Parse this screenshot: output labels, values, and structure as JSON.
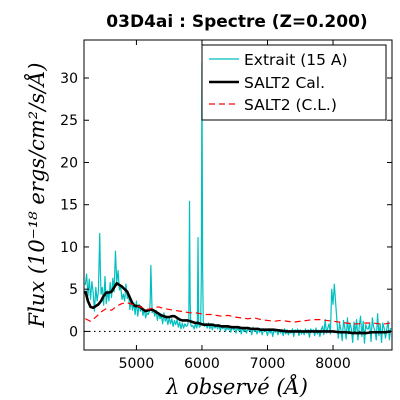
{
  "chart_data": {
    "type": "line",
    "title": "03D4ai : Spectre (Z=0.200)",
    "xlabel": "λ observé (Å)",
    "ylabel": "Flux (10⁻¹⁸ ergs/cm²/s/Å)",
    "xlim": [
      4200,
      8900
    ],
    "ylim": [
      -2.2,
      34.5
    ],
    "xticks": [
      5000,
      6000,
      7000,
      8000
    ],
    "yticks": [
      0,
      5,
      10,
      15,
      20,
      25,
      30
    ],
    "grid": false,
    "legend_position": "top-right",
    "zero_line": {
      "y": 0,
      "style": "dotted",
      "color": "#000000"
    },
    "series": [
      {
        "name": "Extrait (15 A)",
        "color": "#00bfbf",
        "style": "solid",
        "x": [
          4220,
          4240,
          4260,
          4280,
          4300,
          4320,
          4340,
          4360,
          4380,
          4400,
          4420,
          4440,
          4450,
          4460,
          4480,
          4500,
          4520,
          4540,
          4560,
          4580,
          4600,
          4620,
          4640,
          4660,
          4680,
          4700,
          4720,
          4740,
          4760,
          4780,
          4800,
          4820,
          4840,
          4860,
          4880,
          4900,
          4920,
          4940,
          4960,
          4980,
          5000,
          5020,
          5040,
          5060,
          5080,
          5100,
          5120,
          5140,
          5160,
          5180,
          5200,
          5210,
          5220,
          5240,
          5260,
          5280,
          5300,
          5320,
          5340,
          5360,
          5380,
          5400,
          5420,
          5440,
          5460,
          5480,
          5500,
          5520,
          5540,
          5560,
          5580,
          5600,
          5620,
          5640,
          5660,
          5680,
          5700,
          5720,
          5740,
          5760,
          5780,
          5800,
          5810,
          5820,
          5830,
          5840,
          5860,
          5880,
          5900,
          5920,
          5930,
          5940,
          5950,
          5960,
          5980,
          5990,
          6000,
          6010,
          6020,
          6040,
          6060,
          6080,
          6100,
          6120,
          6140,
          6160,
          6180,
          6200,
          6220,
          6240,
          6260,
          6280,
          6300,
          6320,
          6340,
          6360,
          6380,
          6400,
          6420,
          6440,
          6460,
          6480,
          6500,
          6520,
          6540,
          6560,
          6580,
          6600,
          6620,
          6640,
          6660,
          6680,
          6700,
          6720,
          6740,
          6760,
          6780,
          6800,
          6820,
          6840,
          6860,
          6880,
          6900,
          6920,
          6940,
          6960,
          6980,
          7000,
          7020,
          7040,
          7060,
          7080,
          7100,
          7120,
          7140,
          7160,
          7180,
          7200,
          7220,
          7240,
          7260,
          7280,
          7300,
          7320,
          7340,
          7360,
          7380,
          7400,
          7420,
          7440,
          7460,
          7480,
          7500,
          7520,
          7540,
          7560,
          7580,
          7600,
          7620,
          7640,
          7660,
          7680,
          7700,
          7720,
          7740,
          7760,
          7780,
          7800,
          7820,
          7840,
          7860,
          7880,
          7900,
          7920,
          7940,
          7960,
          7980,
          8000,
          8020,
          8040,
          8060,
          8080,
          8100,
          8120,
          8140,
          8160,
          8180,
          8200,
          8220,
          8240,
          8260,
          8280,
          8300,
          8320,
          8340,
          8360,
          8380,
          8400,
          8420,
          8440,
          8460,
          8480,
          8500,
          8520,
          8540,
          8560,
          8580,
          8600,
          8620,
          8640,
          8660,
          8680,
          8700,
          8720,
          8740,
          8760,
          8780,
          8800,
          8820,
          8840,
          8860,
          8880
        ],
        "y": [
          5.5,
          6.8,
          4.2,
          6.2,
          3.8,
          5.9,
          4.6,
          2.4,
          5.2,
          3.6,
          4.8,
          11.6,
          7.2,
          4.4,
          5.2,
          3.1,
          6.5,
          3.3,
          4.8,
          3.6,
          5.8,
          4.0,
          6.3,
          4.7,
          9.5,
          5.8,
          7.2,
          4.9,
          5.3,
          3.8,
          4.4,
          3.6,
          5.6,
          3.9,
          4.5,
          2.6,
          3.8,
          2.5,
          3.4,
          2.0,
          3.6,
          1.8,
          3.2,
          2.4,
          2.9,
          1.9,
          2.6,
          1.6,
          2.2,
          2.0,
          2.4,
          3.5,
          7.8,
          2.2,
          2.6,
          1.8,
          2.5,
          1.3,
          2.2,
          1.5,
          1.9,
          0.9,
          2.2,
          1.2,
          1.7,
          0.8,
          1.6,
          0.9,
          1.5,
          0.6,
          1.3,
          0.8,
          1.4,
          0.5,
          1.1,
          0.3,
          1.0,
          0.4,
          0.9,
          0.6,
          0.7,
          1.5,
          15.4,
          3.6,
          0.8,
          0.6,
          0.7,
          0.3,
          0.9,
          0.4,
          0.8,
          11.1,
          0.9,
          0.5,
          0.7,
          6.2,
          31.8,
          7.5,
          1.2,
          0.6,
          0.9,
          0.4,
          1.0,
          0.3,
          0.8,
          0.2,
          0.9,
          0.4,
          0.7,
          0.3,
          0.8,
          0.1,
          0.6,
          0.3,
          0.7,
          0.0,
          0.6,
          0.2,
          0.5,
          -0.1,
          0.6,
          0.2,
          0.4,
          -0.2,
          0.5,
          0.1,
          0.4,
          -0.3,
          0.5,
          0.0,
          0.3,
          -0.2,
          0.4,
          0.1,
          0.3,
          -0.4,
          0.5,
          0.0,
          0.2,
          -0.3,
          0.4,
          -0.1,
          0.2,
          -0.4,
          0.3,
          0.0,
          0.1,
          -0.5,
          0.3,
          -0.2,
          0.2,
          -0.6,
          0.3,
          -0.1,
          0.2,
          -0.4,
          0.2,
          -0.2,
          0.1,
          -0.5,
          0.3,
          -0.3,
          0.2,
          -0.4,
          0.1,
          -0.2,
          0.3,
          -0.6,
          0.2,
          -0.1,
          0.3,
          -0.5,
          0.2,
          -0.3,
          0.1,
          -0.4,
          0.3,
          -0.2,
          0.2,
          -0.7,
          0.3,
          0.0,
          0.2,
          -0.5,
          0.4,
          -0.3,
          0.1,
          -0.6,
          0.2,
          0.6,
          -0.4,
          1.4,
          -0.2,
          0.4,
          0.9,
          -0.3,
          5.0,
          3.2,
          5.6,
          3.4,
          1.2,
          -0.8,
          1.0,
          0.2,
          -1.1,
          1.3,
          0.4,
          -0.9,
          1.6,
          -0.3,
          1.0,
          0.3,
          -1.3,
          1.1,
          -0.2,
          1.4,
          -1.0,
          0.6,
          1.8,
          -0.6,
          1.2,
          -1.4,
          0.8,
          0.3,
          0.3,
          1.0,
          -1.2,
          1.6,
          0.5,
          0.1,
          -1.0,
          2.1,
          -0.5,
          0.9,
          -1.3,
          1.0,
          0.4,
          -0.8,
          0.3,
          1.2,
          -1.0,
          0.4
        ]
      },
      {
        "name": "SALT2 Cal.",
        "color": "#000000",
        "style": "solid",
        "x": [
          4220,
          4260,
          4300,
          4340,
          4380,
          4420,
          4460,
          4500,
          4540,
          4580,
          4620,
          4660,
          4700,
          4740,
          4780,
          4820,
          4860,
          4900,
          4940,
          4980,
          5020,
          5060,
          5100,
          5140,
          5180,
          5220,
          5260,
          5300,
          5340,
          5380,
          5420,
          5460,
          5500,
          5540,
          5580,
          5620,
          5660,
          5700,
          5740,
          5780,
          5820,
          5860,
          5900,
          5940,
          5980,
          6020,
          6060,
          6100,
          6150,
          6200,
          6250,
          6300,
          6350,
          6400,
          6450,
          6500,
          6550,
          6600,
          6650,
          6700,
          6750,
          6800,
          6850,
          6900,
          6950,
          7000,
          7100,
          7200,
          7300,
          7400,
          7500,
          7600,
          7700,
          7800,
          7900,
          8000,
          8100,
          8200,
          8300,
          8400,
          8500,
          8600,
          8700,
          8800,
          8880
        ],
        "y": [
          4.8,
          3.6,
          2.9,
          2.8,
          3.0,
          3.2,
          3.6,
          4.2,
          4.6,
          4.6,
          4.7,
          5.2,
          5.7,
          5.5,
          5.3,
          5.0,
          4.7,
          4.0,
          3.3,
          3.0,
          3.0,
          2.9,
          2.6,
          2.4,
          2.5,
          2.6,
          2.5,
          2.3,
          2.1,
          1.9,
          1.8,
          1.7,
          1.7,
          1.8,
          1.8,
          1.6,
          1.4,
          1.3,
          1.3,
          1.3,
          1.2,
          1.1,
          1.0,
          1.0,
          0.9,
          0.8,
          0.8,
          0.8,
          0.8,
          0.7,
          0.7,
          0.6,
          0.6,
          0.6,
          0.5,
          0.5,
          0.5,
          0.4,
          0.4,
          0.4,
          0.3,
          0.3,
          0.3,
          0.2,
          0.2,
          0.2,
          0.2,
          0.1,
          0.0,
          0.0,
          0.0,
          0.0,
          0.0,
          0.0,
          0.0,
          0.0,
          -0.1,
          -0.1,
          -0.2,
          -0.2,
          -0.2,
          -0.1,
          -0.1,
          -0.1,
          0.0
        ]
      },
      {
        "name": "SALT2 (C.L.)",
        "color": "#ff0000",
        "style": "dashed",
        "x": [
          4220,
          4300,
          4380,
          4460,
          4540,
          4620,
          4700,
          4780,
          4860,
          4940,
          5020,
          5100,
          5180,
          5260,
          5340,
          5420,
          5500,
          5580,
          5660,
          5740,
          5820,
          5900,
          5980,
          6060,
          6140,
          6220,
          6300,
          6400,
          6500,
          6600,
          6700,
          6800,
          6900,
          7000,
          7100,
          7200,
          7300,
          7400,
          7500,
          7600,
          7700,
          7800,
          7900,
          8000,
          8100,
          8200,
          8300,
          8400,
          8500,
          8600,
          8700,
          8800,
          8880
        ],
        "y": [
          1.5,
          1.2,
          1.7,
          2.3,
          2.7,
          2.5,
          3.0,
          3.3,
          3.4,
          3.2,
          3.0,
          2.8,
          2.6,
          2.8,
          2.9,
          2.7,
          2.6,
          2.5,
          2.4,
          2.3,
          2.2,
          2.2,
          2.1,
          2.0,
          2.0,
          1.9,
          1.8,
          1.9,
          1.7,
          1.6,
          1.5,
          1.6,
          1.4,
          1.3,
          1.2,
          1.3,
          1.2,
          1.1,
          1.2,
          1.3,
          1.4,
          1.4,
          1.3,
          1.2,
          1.1,
          1.0,
          0.9,
          0.9,
          1.0,
          1.0,
          0.9,
          0.9,
          1.0
        ]
      }
    ]
  }
}
